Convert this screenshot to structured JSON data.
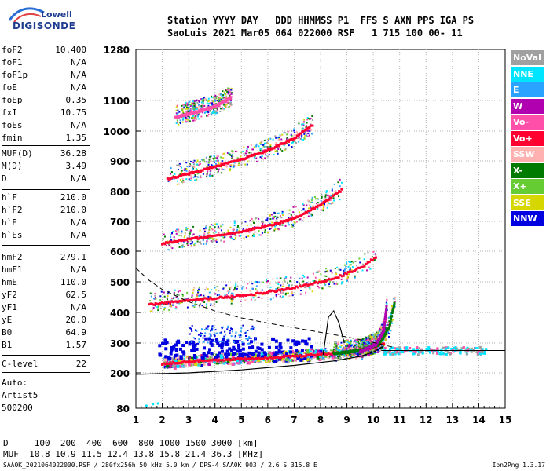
{
  "brand": {
    "line1": "Lowell",
    "line2": "DIGISONDE"
  },
  "header": {
    "line1": "Station YYYY DAY   DDD HHMMSS P1  FFS S AXN PPS IGA PS",
    "line2": "SaoLuis 2021 Mar05 064 022000 RSF   1 715 100 00- 11"
  },
  "params": [
    {
      "name": "foF2",
      "value": "10.400"
    },
    {
      "name": "foF1",
      "value": "N/A"
    },
    {
      "name": "foF1p",
      "value": "N/A"
    },
    {
      "name": "foE",
      "value": "N/A"
    },
    {
      "name": "foEp",
      "value": "0.35"
    },
    {
      "name": "fxI",
      "value": "10.75"
    },
    {
      "name": "foEs",
      "value": "N/A"
    },
    {
      "name": "fmin",
      "value": "1.35"
    },
    {
      "name": "MUF(D)",
      "value": "36.28"
    },
    {
      "name": "M(D)",
      "value": "3.49"
    },
    {
      "name": "D",
      "value": "N/A"
    },
    {
      "name": "h`F",
      "value": "210.0"
    },
    {
      "name": "h`F2",
      "value": "210.0"
    },
    {
      "name": "h`E",
      "value": "N/A"
    },
    {
      "name": "h`Es",
      "value": "N/A"
    },
    {
      "name": "hmF2",
      "value": "279.1"
    },
    {
      "name": "hmF1",
      "value": "N/A"
    },
    {
      "name": "hmE",
      "value": "110.0"
    },
    {
      "name": "yF2",
      "value": "62.5"
    },
    {
      "name": "yF1",
      "value": "N/A"
    },
    {
      "name": "yE",
      "value": "20.0"
    },
    {
      "name": "B0",
      "value": "64.9"
    },
    {
      "name": "B1",
      "value": "1.57"
    },
    {
      "name": "C-level",
      "value": "22"
    }
  ],
  "auto": {
    "label": "Auto:",
    "artist": "Artist5",
    "code": "500200"
  },
  "legend": [
    {
      "label": "NoVal",
      "color": "#a0a0a0"
    },
    {
      "label": "NNE",
      "color": "#00e5ff"
    },
    {
      "label": "E",
      "color": "#29a3ff"
    },
    {
      "label": "W",
      "color": "#b000b0"
    },
    {
      "label": "Vo-",
      "color": "#ff4fa8"
    },
    {
      "label": "Vo+",
      "color": "#ff0030"
    },
    {
      "label": "SSW",
      "color": "#ffb0b0"
    },
    {
      "label": "X-",
      "color": "#007a00"
    },
    {
      "label": "X+",
      "color": "#66cc33"
    },
    {
      "label": "SSE",
      "color": "#d6d600"
    },
    {
      "label": "NNW",
      "color": "#0000e0"
    }
  ],
  "footer": {
    "d_line": "D     100  200  400  600  800 1000 1500 3000 [km]",
    "muf_line": "MUF  10.8 10.9 11.5 12.4 13.8 15.8 21.4 36.3 [MHz]",
    "file_line": "SAA0K_2021064022000.RSF / 280fx256h 50 kHz 5.0 km / DPS-4 SAA0K 903 / 2.6 S 315.8 E",
    "version": "Ion2Png 1.3.17"
  },
  "chart_data": {
    "type": "scatter",
    "x_ticks": [
      "1",
      "2",
      "3",
      "4",
      "5",
      "6",
      "7",
      "8",
      "9",
      "10",
      "11",
      "12",
      "13",
      "14",
      "15"
    ],
    "y_ticks": [
      "80",
      "200",
      "300",
      "400",
      "500",
      "600",
      "700",
      "800",
      "900",
      "1000",
      "1100",
      "1280"
    ],
    "y_tick_values": [
      80,
      200,
      300,
      400,
      500,
      600,
      700,
      800,
      900,
      1000,
      1100,
      1280
    ],
    "xlim": [
      1,
      15
    ],
    "ylim": [
      80,
      1280
    ],
    "grid": "dotted",
    "traces": [
      {
        "kind": "F2 trace",
        "color": "#ff0030",
        "x": [
          2.0,
          3.0,
          4.0,
          5.0,
          6.0,
          7.0,
          8.0,
          9.0,
          10.0,
          10.4
        ],
        "y": [
          230,
          238,
          243,
          247,
          251,
          255,
          262,
          270,
          285,
          300
        ]
      },
      {
        "kind": "2F trace",
        "color": "#ff0030",
        "x": [
          1.5,
          2.5,
          3.5,
          4.5,
          5.5,
          6.5,
          7.5,
          8.5,
          9.5,
          10.1
        ],
        "y": [
          425,
          435,
          443,
          450,
          460,
          473,
          490,
          510,
          545,
          580
        ]
      },
      {
        "kind": "3F trace",
        "color": "#ff0030",
        "x": [
          2.0,
          3.0,
          4.0,
          5.0,
          6.0,
          7.0,
          8.0,
          8.8
        ],
        "y": [
          625,
          640,
          652,
          666,
          685,
          710,
          755,
          805
        ]
      },
      {
        "kind": "4F trace",
        "color": "#ff0030",
        "x": [
          2.2,
          3.0,
          4.0,
          5.0,
          6.0,
          7.0,
          7.7
        ],
        "y": [
          840,
          858,
          880,
          905,
          935,
          975,
          1020
        ]
      },
      {
        "kind": "5F trace",
        "color": "#ff4fa8",
        "x": [
          2.5,
          3.2,
          4.0,
          4.6
        ],
        "y": [
          1045,
          1060,
          1080,
          1110
        ]
      },
      {
        "kind": "X trace",
        "color": "#007a00",
        "x": [
          8.5,
          9.5,
          10.2,
          10.6,
          10.8
        ],
        "y": [
          265,
          275,
          295,
          350,
          430
        ]
      },
      {
        "kind": "O trace",
        "color": "#b000b0",
        "x": [
          9.5,
          10.1,
          10.4,
          10.5
        ],
        "y": [
          270,
          295,
          340,
          420
        ]
      }
    ],
    "profile": {
      "x": [
        1.0,
        3.0,
        5.0,
        7.0,
        8.5,
        9.5,
        10.0,
        10.4
      ],
      "y": [
        195,
        200,
        210,
        225,
        240,
        255,
        270,
        290
      ]
    },
    "dashed_curve": {
      "x": [
        1.0,
        1.5,
        2.0,
        3.0,
        4.0,
        5.0,
        6.0,
        7.0,
        8.0,
        9.0,
        10.0,
        10.8
      ],
      "y": [
        545,
        505,
        475,
        435,
        405,
        382,
        365,
        350,
        335,
        320,
        302,
        285
      ]
    },
    "spike": {
      "x": [
        8.1,
        8.3,
        8.5,
        8.7,
        8.9
      ],
      "y": [
        260,
        385,
        405,
        365,
        300
      ]
    },
    "horizontal_line": {
      "y": 275,
      "xlim": [
        10.3,
        15
      ]
    }
  }
}
